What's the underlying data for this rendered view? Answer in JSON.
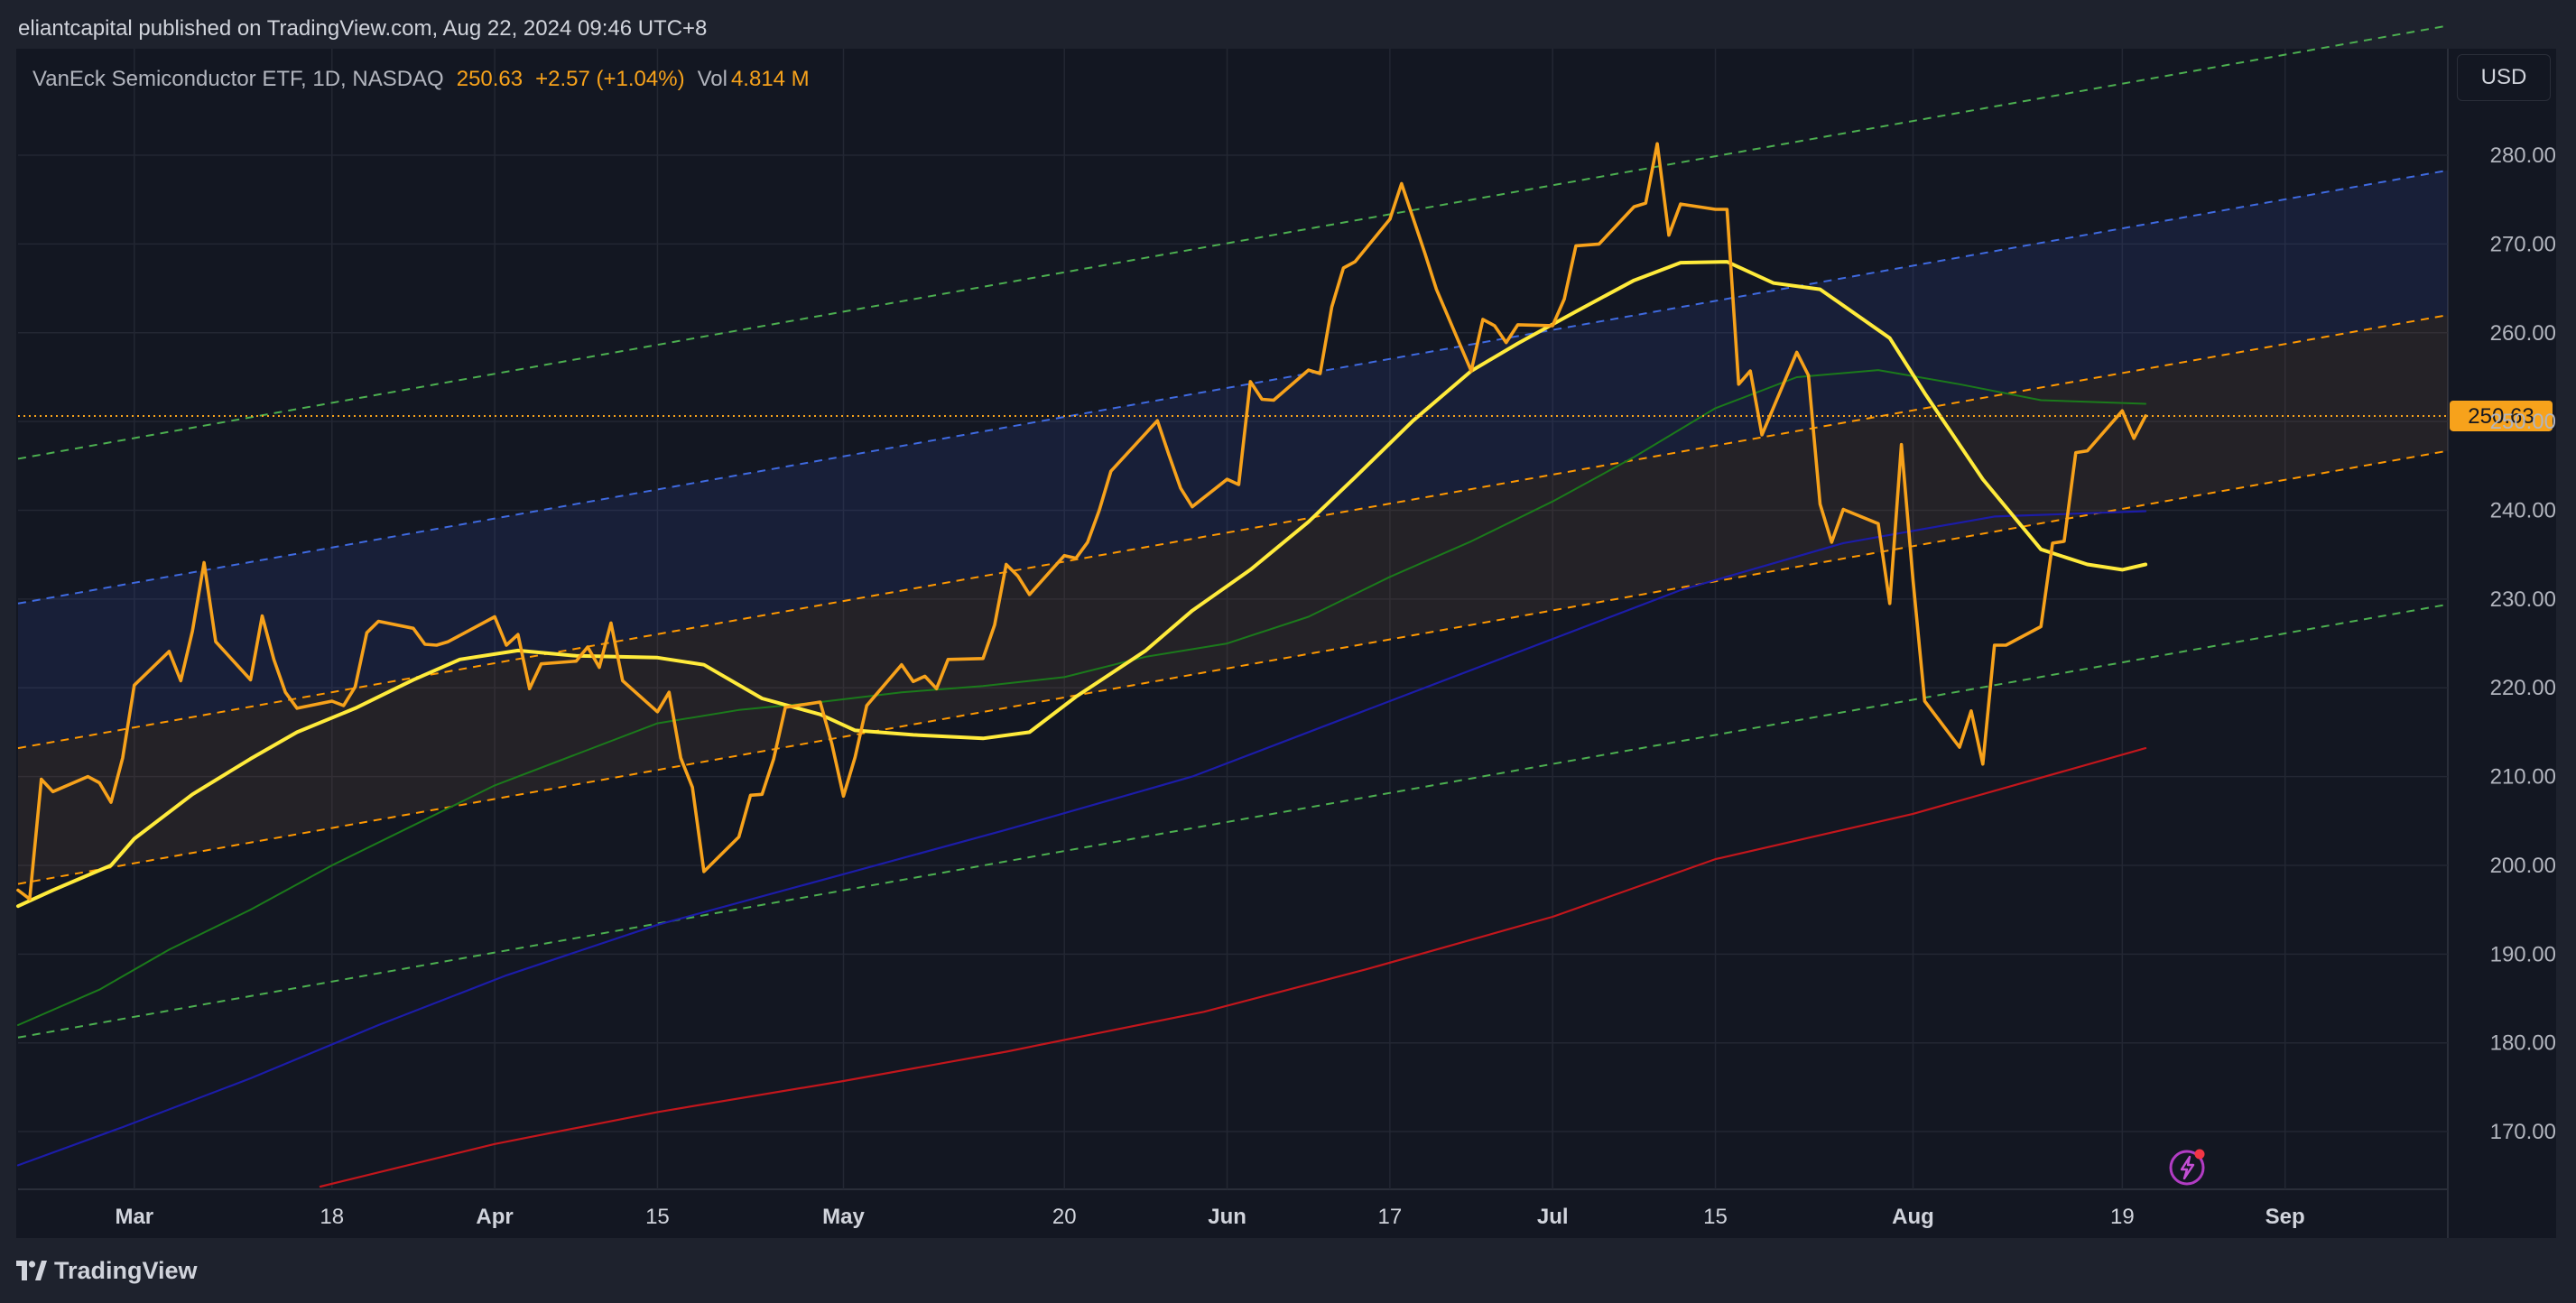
{
  "header": {
    "publisher": "eliantcapital published on TradingView.com, Aug 22, 2024 09:46 UTC+8"
  },
  "legend": {
    "symbol": "VanEck Semiconductor ETF, 1D, NASDAQ",
    "last": "250.63",
    "change": "+2.57 (+1.04%)",
    "volume_label": "Vol",
    "volume": "4.814 M"
  },
  "currency": "USD",
  "price_tag": "250.63",
  "footer": {
    "logo_text": "TradingView"
  },
  "colors": {
    "price": "#f7a21b",
    "sma_fast": "#ffeb3b",
    "sma_mid": "#1b7a1b",
    "sma_long": "#1c1ca8",
    "sma_200": "#c2161c",
    "channel_mid": "#ff9800",
    "channel_inner": "#3f6ae0",
    "channel_outer": "#4caf50"
  },
  "chart_data": {
    "type": "line",
    "title": "",
    "ylim": [
      163.5,
      292
    ],
    "y_ticks": [
      170,
      180,
      190,
      200,
      210,
      220,
      230,
      240,
      250,
      260,
      270,
      280
    ],
    "y_tick_labels": [
      "170.00",
      "180.00",
      "190.00",
      "200.00",
      "210.00",
      "220.00",
      "230.00",
      "240.00",
      "250.00",
      "260.00",
      "270.00",
      "280.00"
    ],
    "x_range": [
      "2024-02-20",
      "2024-09-16"
    ],
    "x_ticks": [
      {
        "date": "2024-03-01",
        "label": "Mar",
        "major": true
      },
      {
        "date": "2024-03-18",
        "label": "18",
        "major": false
      },
      {
        "date": "2024-04-01",
        "label": "Apr",
        "major": true
      },
      {
        "date": "2024-04-15",
        "label": "15",
        "major": false
      },
      {
        "date": "2024-05-01",
        "label": "May",
        "major": true
      },
      {
        "date": "2024-05-20",
        "label": "20",
        "major": false
      },
      {
        "date": "2024-06-03",
        "label": "Jun",
        "major": true
      },
      {
        "date": "2024-06-17",
        "label": "17",
        "major": false
      },
      {
        "date": "2024-07-01",
        "label": "Jul",
        "major": true
      },
      {
        "date": "2024-07-15",
        "label": "15",
        "major": false
      },
      {
        "date": "2024-08-01",
        "label": "Aug",
        "major": true
      },
      {
        "date": "2024-08-19",
        "label": "19",
        "major": false
      },
      {
        "date": "2024-09-02",
        "label": "Sep",
        "major": true
      }
    ],
    "last_price": 250.63,
    "series": [
      {
        "key": "price",
        "points": [
          [
            "2024-02-20",
            197.2
          ],
          [
            "2024-02-21",
            196.2
          ],
          [
            "2024-02-22",
            209.7
          ],
          [
            "2024-02-23",
            208.3
          ],
          [
            "2024-02-26",
            210.0
          ],
          [
            "2024-02-27",
            209.3
          ],
          [
            "2024-02-28",
            207.1
          ],
          [
            "2024-02-29",
            212.1
          ],
          [
            "2024-03-01",
            220.3
          ],
          [
            "2024-03-04",
            224.1
          ],
          [
            "2024-03-05",
            220.8
          ],
          [
            "2024-03-06",
            226.4
          ],
          [
            "2024-03-07",
            234.1
          ],
          [
            "2024-03-08",
            225.2
          ],
          [
            "2024-03-11",
            220.9
          ],
          [
            "2024-03-12",
            228.1
          ],
          [
            "2024-03-13",
            223.2
          ],
          [
            "2024-03-14",
            219.5
          ],
          [
            "2024-03-15",
            217.7
          ],
          [
            "2024-03-18",
            218.5
          ],
          [
            "2024-03-19",
            218.0
          ],
          [
            "2024-03-20",
            220.1
          ],
          [
            "2024-03-21",
            226.2
          ],
          [
            "2024-03-22",
            227.5
          ],
          [
            "2024-03-25",
            226.7
          ],
          [
            "2024-03-26",
            224.9
          ],
          [
            "2024-03-27",
            224.8
          ],
          [
            "2024-03-28",
            225.2
          ],
          [
            "2024-04-01",
            228.0
          ],
          [
            "2024-04-02",
            224.8
          ],
          [
            "2024-04-03",
            226.0
          ],
          [
            "2024-04-04",
            219.9
          ],
          [
            "2024-04-05",
            222.7
          ],
          [
            "2024-04-08",
            223.0
          ],
          [
            "2024-04-09",
            224.6
          ],
          [
            "2024-04-10",
            222.3
          ],
          [
            "2024-04-11",
            227.3
          ],
          [
            "2024-04-12",
            220.8
          ],
          [
            "2024-04-15",
            217.3
          ],
          [
            "2024-04-16",
            219.5
          ],
          [
            "2024-04-17",
            212.1
          ],
          [
            "2024-04-18",
            208.8
          ],
          [
            "2024-04-19",
            199.3
          ],
          [
            "2024-04-22",
            203.2
          ],
          [
            "2024-04-23",
            207.9
          ],
          [
            "2024-04-24",
            208.0
          ],
          [
            "2024-04-25",
            212.0
          ],
          [
            "2024-04-26",
            217.8
          ],
          [
            "2024-04-29",
            218.4
          ],
          [
            "2024-04-30",
            213.7
          ],
          [
            "2024-05-01",
            207.8
          ],
          [
            "2024-05-02",
            212.2
          ],
          [
            "2024-05-03",
            218.0
          ],
          [
            "2024-05-06",
            222.6
          ],
          [
            "2024-05-07",
            220.7
          ],
          [
            "2024-05-08",
            221.3
          ],
          [
            "2024-05-09",
            219.9
          ],
          [
            "2024-05-10",
            223.2
          ],
          [
            "2024-05-13",
            223.3
          ],
          [
            "2024-05-14",
            227.1
          ],
          [
            "2024-05-15",
            233.9
          ],
          [
            "2024-05-16",
            232.6
          ],
          [
            "2024-05-17",
            230.5
          ],
          [
            "2024-05-20",
            234.9
          ],
          [
            "2024-05-21",
            234.6
          ],
          [
            "2024-05-22",
            236.4
          ],
          [
            "2024-05-23",
            240.0
          ],
          [
            "2024-05-24",
            244.4
          ],
          [
            "2024-05-28",
            250.1
          ],
          [
            "2024-05-29",
            246.2
          ],
          [
            "2024-05-30",
            242.5
          ],
          [
            "2024-05-31",
            240.4
          ],
          [
            "2024-06-03",
            243.5
          ],
          [
            "2024-06-04",
            242.9
          ],
          [
            "2024-06-05",
            254.5
          ],
          [
            "2024-06-06",
            252.5
          ],
          [
            "2024-06-07",
            252.4
          ],
          [
            "2024-06-10",
            255.8
          ],
          [
            "2024-06-11",
            255.4
          ],
          [
            "2024-06-12",
            262.9
          ],
          [
            "2024-06-13",
            267.3
          ],
          [
            "2024-06-14",
            268.0
          ],
          [
            "2024-06-17",
            272.8
          ],
          [
            "2024-06-18",
            276.8
          ],
          [
            "2024-06-20",
            269.0
          ],
          [
            "2024-06-21",
            264.9
          ],
          [
            "2024-06-24",
            255.7
          ],
          [
            "2024-06-25",
            261.5
          ],
          [
            "2024-06-26",
            260.8
          ],
          [
            "2024-06-27",
            258.9
          ],
          [
            "2024-06-28",
            260.9
          ],
          [
            "2024-07-01",
            260.8
          ],
          [
            "2024-07-02",
            263.8
          ],
          [
            "2024-07-03",
            269.8
          ],
          [
            "2024-07-05",
            270.0
          ],
          [
            "2024-07-08",
            274.2
          ],
          [
            "2024-07-09",
            274.6
          ],
          [
            "2024-07-10",
            281.3
          ],
          [
            "2024-07-11",
            271.0
          ],
          [
            "2024-07-12",
            274.5
          ],
          [
            "2024-07-15",
            273.9
          ],
          [
            "2024-07-16",
            273.9
          ],
          [
            "2024-07-17",
            254.2
          ],
          [
            "2024-07-18",
            255.7
          ],
          [
            "2024-07-19",
            248.5
          ],
          [
            "2024-07-22",
            257.8
          ],
          [
            "2024-07-23",
            255.2
          ],
          [
            "2024-07-24",
            240.7
          ],
          [
            "2024-07-25",
            236.4
          ],
          [
            "2024-07-26",
            240.1
          ],
          [
            "2024-07-29",
            238.5
          ],
          [
            "2024-07-30",
            229.5
          ],
          [
            "2024-07-31",
            247.4
          ],
          [
            "2024-08-01",
            232.1
          ],
          [
            "2024-08-02",
            218.5
          ],
          [
            "2024-08-05",
            213.3
          ],
          [
            "2024-08-06",
            217.4
          ],
          [
            "2024-08-07",
            211.4
          ],
          [
            "2024-08-08",
            224.8
          ],
          [
            "2024-08-09",
            224.8
          ],
          [
            "2024-08-12",
            226.9
          ],
          [
            "2024-08-13",
            236.3
          ],
          [
            "2024-08-14",
            236.5
          ],
          [
            "2024-08-15",
            246.5
          ],
          [
            "2024-08-16",
            246.7
          ],
          [
            "2024-08-19",
            251.2
          ],
          [
            "2024-08-20",
            248.1
          ],
          [
            "2024-08-21",
            250.63
          ]
        ]
      },
      {
        "key": "sma_fast",
        "points": [
          [
            "2024-02-20",
            195.4
          ],
          [
            "2024-02-23",
            197.2
          ],
          [
            "2024-02-28",
            200.0
          ],
          [
            "2024-03-01",
            203.0
          ],
          [
            "2024-03-06",
            208.0
          ],
          [
            "2024-03-11",
            212.0
          ],
          [
            "2024-03-15",
            215.0
          ],
          [
            "2024-03-20",
            217.7
          ],
          [
            "2024-03-25",
            220.9
          ],
          [
            "2024-03-29",
            223.2
          ],
          [
            "2024-04-03",
            224.2
          ],
          [
            "2024-04-08",
            223.6
          ],
          [
            "2024-04-15",
            223.4
          ],
          [
            "2024-04-19",
            222.6
          ],
          [
            "2024-04-24",
            218.8
          ],
          [
            "2024-04-29",
            217.0
          ],
          [
            "2024-05-02",
            215.2
          ],
          [
            "2024-05-07",
            214.7
          ],
          [
            "2024-05-13",
            214.3
          ],
          [
            "2024-05-17",
            215.0
          ],
          [
            "2024-05-21",
            219.0
          ],
          [
            "2024-05-27",
            224.2
          ],
          [
            "2024-05-31",
            228.7
          ],
          [
            "2024-06-05",
            233.3
          ],
          [
            "2024-06-10",
            238.7
          ],
          [
            "2024-06-14",
            243.7
          ],
          [
            "2024-06-19",
            250.1
          ],
          [
            "2024-06-24",
            255.7
          ],
          [
            "2024-06-28",
            258.8
          ],
          [
            "2024-07-03",
            262.4
          ],
          [
            "2024-07-08",
            265.9
          ],
          [
            "2024-07-12",
            267.9
          ],
          [
            "2024-07-16",
            268.0
          ],
          [
            "2024-07-20",
            265.6
          ],
          [
            "2024-07-24",
            264.9
          ],
          [
            "2024-07-30",
            259.4
          ],
          [
            "2024-08-02",
            253.2
          ],
          [
            "2024-08-07",
            243.5
          ],
          [
            "2024-08-12",
            235.6
          ],
          [
            "2024-08-16",
            233.9
          ],
          [
            "2024-08-19",
            233.3
          ],
          [
            "2024-08-21",
            233.9
          ]
        ]
      },
      {
        "key": "sma_mid",
        "points": [
          [
            "2024-02-20",
            182.0
          ],
          [
            "2024-02-27",
            186.0
          ],
          [
            "2024-03-04",
            190.5
          ],
          [
            "2024-03-11",
            195.0
          ],
          [
            "2024-03-18",
            200.0
          ],
          [
            "2024-03-25",
            204.5
          ],
          [
            "2024-04-01",
            209.0
          ],
          [
            "2024-04-08",
            212.5
          ],
          [
            "2024-04-15",
            216.0
          ],
          [
            "2024-04-22",
            217.5
          ],
          [
            "2024-04-29",
            218.4
          ],
          [
            "2024-05-06",
            219.5
          ],
          [
            "2024-05-13",
            220.2
          ],
          [
            "2024-05-20",
            221.2
          ],
          [
            "2024-05-27",
            223.5
          ],
          [
            "2024-06-03",
            225.0
          ],
          [
            "2024-06-10",
            228.0
          ],
          [
            "2024-06-17",
            232.5
          ],
          [
            "2024-06-24",
            236.5
          ],
          [
            "2024-07-01",
            241.0
          ],
          [
            "2024-07-08",
            246.0
          ],
          [
            "2024-07-15",
            251.5
          ],
          [
            "2024-07-22",
            255.0
          ],
          [
            "2024-07-29",
            255.8
          ],
          [
            "2024-08-05",
            254.2
          ],
          [
            "2024-08-12",
            252.4
          ],
          [
            "2024-08-21",
            252.0
          ]
        ]
      },
      {
        "key": "sma_long",
        "points": [
          [
            "2024-02-20",
            166.2
          ],
          [
            "2024-02-29",
            170.5
          ],
          [
            "2024-03-11",
            176.0
          ],
          [
            "2024-03-22",
            182.0
          ],
          [
            "2024-04-02",
            187.6
          ],
          [
            "2024-04-15",
            193.3
          ],
          [
            "2024-05-01",
            199.0
          ],
          [
            "2024-05-15",
            204.0
          ],
          [
            "2024-05-31",
            210.0
          ],
          [
            "2024-06-14",
            217.0
          ],
          [
            "2024-06-28",
            224.0
          ],
          [
            "2024-07-12",
            231.0
          ],
          [
            "2024-07-26",
            236.3
          ],
          [
            "2024-08-08",
            239.3
          ],
          [
            "2024-08-21",
            239.9
          ]
        ]
      },
      {
        "key": "sma_200",
        "points": [
          [
            "2024-03-17",
            163.8
          ],
          [
            "2024-04-01",
            168.6
          ],
          [
            "2024-04-15",
            172.2
          ],
          [
            "2024-05-01",
            175.7
          ],
          [
            "2024-05-15",
            179.0
          ],
          [
            "2024-06-01",
            183.5
          ],
          [
            "2024-06-15",
            188.3
          ],
          [
            "2024-07-01",
            194.2
          ],
          [
            "2024-07-15",
            200.7
          ],
          [
            "2024-08-01",
            205.8
          ],
          [
            "2024-08-21",
            213.2
          ]
        ]
      }
    ],
    "regression_channel": {
      "start": [
        "2024-02-20",
        213.2
      ],
      "end": [
        "2024-09-16",
        262.0
      ],
      "mid_band_offset": 15.3,
      "inner_offset": 16.3,
      "outer_offset": 32.6
    }
  }
}
